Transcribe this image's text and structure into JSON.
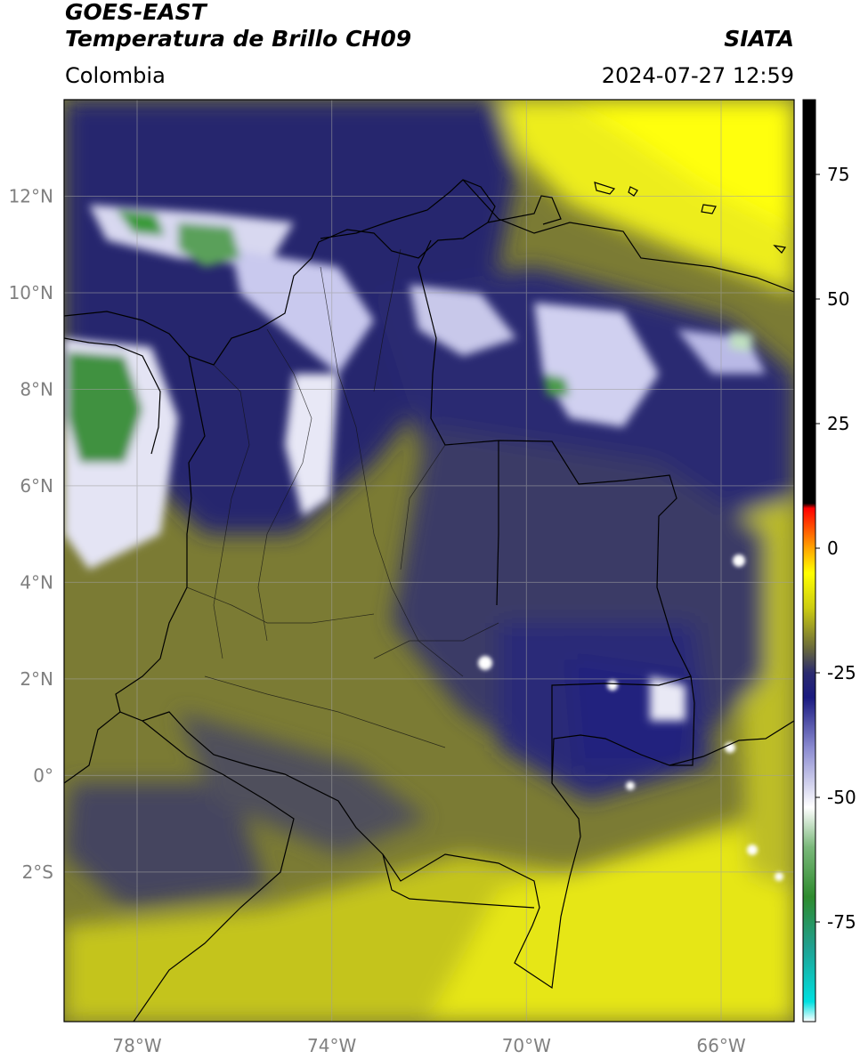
{
  "header": {
    "line1": "GOES-EAST",
    "line2": "Temperatura de Brillo CH09",
    "organization": "SIATA",
    "region": "Colombia",
    "timestamp": "2024-07-27 12:59"
  },
  "map": {
    "lon_range": [
      -79.5,
      -64.5
    ],
    "lat_range": [
      -5.1,
      14.0
    ],
    "lat_ticks": [
      {
        "value": 12,
        "label": "12°N"
      },
      {
        "value": 10,
        "label": "10°N"
      },
      {
        "value": 8,
        "label": "8°N"
      },
      {
        "value": 6,
        "label": "6°N"
      },
      {
        "value": 4,
        "label": "4°N"
      },
      {
        "value": 2,
        "label": "2°N"
      },
      {
        "value": 0,
        "label": "0°"
      },
      {
        "value": -2,
        "label": "2°S"
      }
    ],
    "lon_ticks": [
      {
        "value": -78,
        "label": "78°W"
      },
      {
        "value": -74,
        "label": "74°W"
      },
      {
        "value": -70,
        "label": "70°W"
      },
      {
        "value": -66,
        "label": "66°W"
      }
    ],
    "gridlines": true
  },
  "colorbar": {
    "range": [
      -95,
      90
    ],
    "ticks": [
      {
        "value": 75,
        "label": "75"
      },
      {
        "value": 50,
        "label": "50"
      },
      {
        "value": 25,
        "label": "25"
      },
      {
        "value": 0,
        "label": "0"
      },
      {
        "value": -25,
        "label": "-25"
      },
      {
        "value": -50,
        "label": "-50"
      },
      {
        "value": -75,
        "label": "-75"
      }
    ],
    "stops": [
      {
        "value": -95,
        "color": "#ffffff"
      },
      {
        "value": -91,
        "color": "#00e0e0"
      },
      {
        "value": -80,
        "color": "#20a090"
      },
      {
        "value": -70,
        "color": "#2e8b2e"
      },
      {
        "value": -60,
        "color": "#7ab87a"
      },
      {
        "value": -52,
        "color": "#ffffff"
      },
      {
        "value": -40,
        "color": "#8a8ad0"
      },
      {
        "value": -30,
        "color": "#1a1a80"
      },
      {
        "value": -25,
        "color": "#2a2a6e"
      },
      {
        "value": -20,
        "color": "#6a6a3a"
      },
      {
        "value": -12,
        "color": "#cccc10"
      },
      {
        "value": -5,
        "color": "#ffff00"
      },
      {
        "value": 0,
        "color": "#ffa500"
      },
      {
        "value": 8,
        "color": "#ff0000"
      },
      {
        "value": 9,
        "color": "#000000"
      },
      {
        "value": 90,
        "color": "#000000"
      }
    ]
  }
}
